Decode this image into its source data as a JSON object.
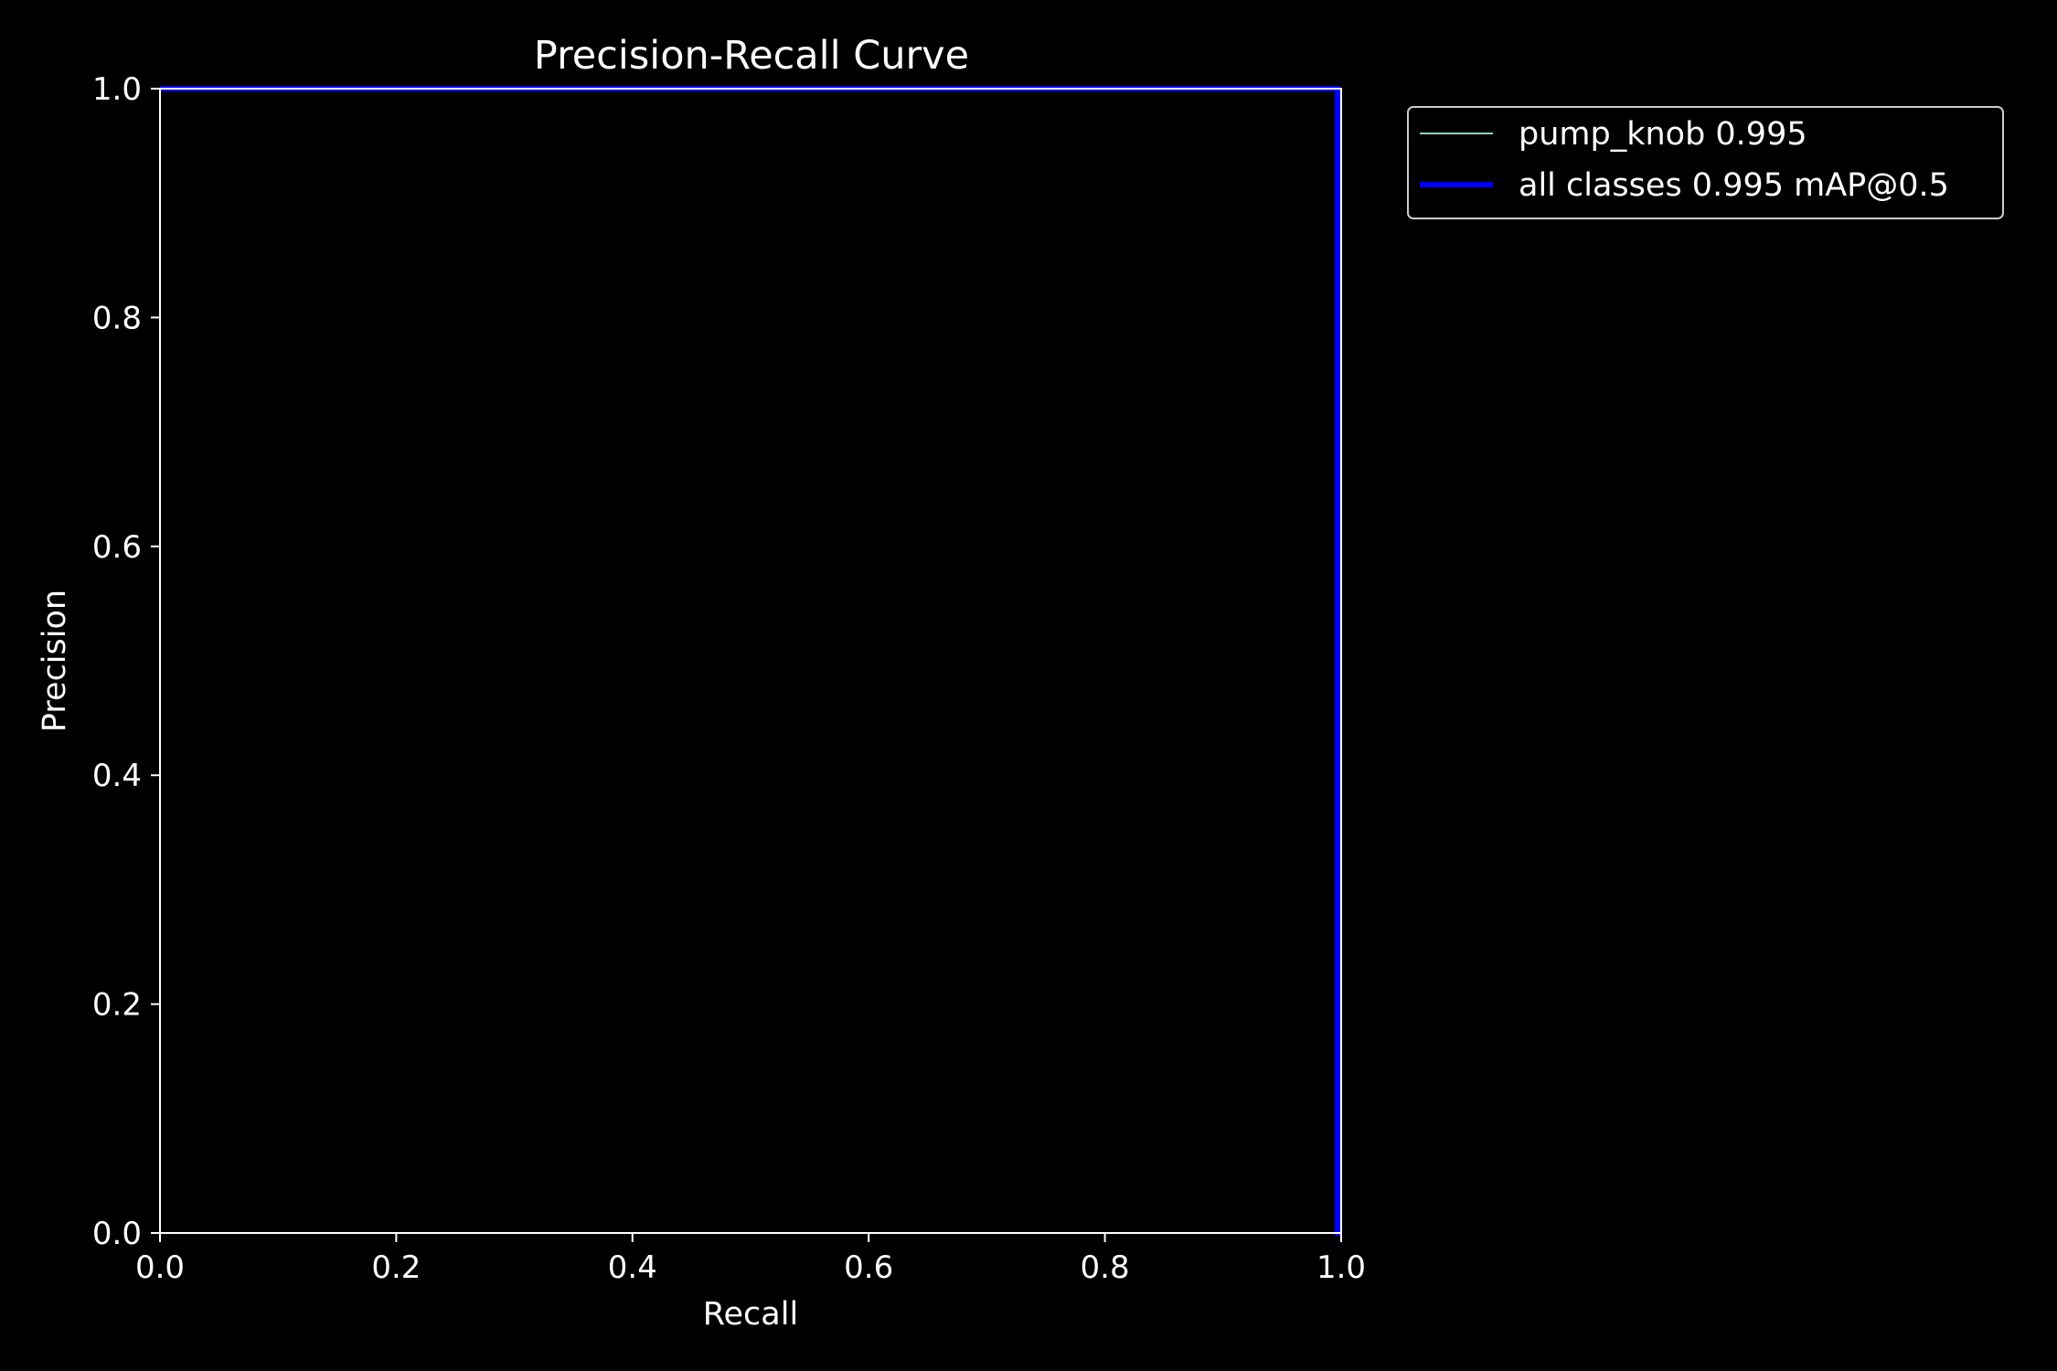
{
  "chart_data": {
    "type": "line",
    "title": "Precision-Recall Curve",
    "xlabel": "Recall",
    "ylabel": "Precision",
    "xlim": [
      0.0,
      1.0
    ],
    "ylim": [
      0.0,
      1.0
    ],
    "xticks": [
      "0.0",
      "0.2",
      "0.4",
      "0.6",
      "0.8",
      "1.0"
    ],
    "yticks": [
      "0.0",
      "0.2",
      "0.4",
      "0.6",
      "0.8",
      "1.0"
    ],
    "grid": false,
    "legend_position": "outside-top-right",
    "background": "#000000",
    "series": [
      {
        "name": "pump_knob 0.995",
        "color": "#8dd3c7",
        "x": [
          0.0,
          0.997,
          0.997,
          1.0
        ],
        "y": [
          1.0,
          1.0,
          0.0,
          0.0
        ]
      },
      {
        "name": "all classes 0.995 mAP@0.5",
        "color": "#0000ff",
        "x": [
          0.0,
          0.997,
          0.997,
          1.0
        ],
        "y": [
          1.0,
          1.0,
          0.0,
          0.0
        ]
      }
    ]
  }
}
